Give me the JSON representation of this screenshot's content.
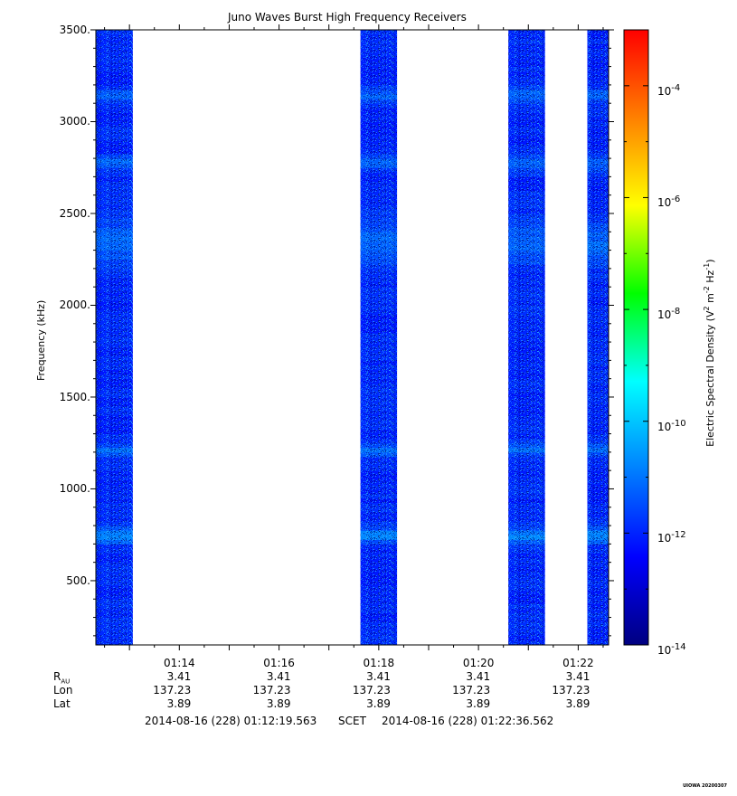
{
  "chart_data": {
    "type": "heatmap",
    "title": "Juno Waves Burst High Frequency Receivers",
    "ylabel": "Frequency (kHz)",
    "y_ticks": [
      "3500.",
      "3000.",
      "2500.",
      "2000.",
      "1500.",
      "1000.",
      "500."
    ],
    "y_tick_values": [
      3500,
      3000,
      2500,
      2000,
      1500,
      1000,
      500
    ],
    "ylim": [
      150,
      3500
    ],
    "xlim": [
      "01:12:19.563",
      "01:22:36.562"
    ],
    "x_ticks": [
      "01:14",
      "01:16",
      "01:18",
      "01:20",
      "01:22"
    ],
    "x_tick_values": [
      "01:14",
      "01:16",
      "01:18",
      "01:20",
      "01:22"
    ],
    "data_intervals": [
      [
        "01:12:19.563",
        "01:13:04"
      ],
      [
        "01:17:38",
        "01:18:22"
      ],
      [
        "01:20:36",
        "01:21:20"
      ],
      [
        "01:22:11",
        "01:22:36.562"
      ]
    ],
    "emission_bands_khz": [
      {
        "center": 3130,
        "strength": "moderate"
      },
      {
        "center": 2760,
        "strength": "moderate"
      },
      {
        "center": 2330,
        "strength": "broad"
      },
      {
        "center": 1200,
        "strength": "moderate"
      },
      {
        "center": 735,
        "strength": "strong"
      }
    ],
    "background_level_log10": -12,
    "colorbar": {
      "label": "Electric Spectral Density (V² m⁻² Hz⁻¹)",
      "label_parts": [
        "Electric Spectral Density (V",
        "2",
        " m",
        "-2",
        " Hz",
        "-1",
        ")"
      ],
      "scale": "log",
      "range_log10": [
        -14,
        -3
      ],
      "ticks": [
        {
          "base": "10",
          "exp": "-4",
          "value": -4
        },
        {
          "base": "10",
          "exp": "-6",
          "value": -6
        },
        {
          "base": "10",
          "exp": "-8",
          "value": -8
        },
        {
          "base": "10",
          "exp": "-10",
          "value": -10
        },
        {
          "base": "10",
          "exp": "-12",
          "value": -12
        },
        {
          "base": "10",
          "exp": "-14",
          "value": -14
        }
      ],
      "colors": [
        "#000080",
        "#0000ff",
        "#0080ff",
        "#00ffff",
        "#00ff00",
        "#ffff00",
        "#ff8000",
        "#ff0000"
      ]
    },
    "ephemeris": {
      "labels": [
        {
          "main": "R",
          "sub": "AU"
        },
        {
          "main": "Lon",
          "sub": ""
        },
        {
          "main": "Lat",
          "sub": ""
        }
      ],
      "rows": [
        [
          "3.41",
          "3.41",
          "3.41",
          "3.41",
          "3.41"
        ],
        [
          "137.23",
          "137.23",
          "137.23",
          "137.23",
          "137.23"
        ],
        [
          "3.89",
          "3.89",
          "3.89",
          "3.89",
          "3.89"
        ]
      ]
    },
    "time_range": {
      "start": "2014-08-16 (228) 01:12:19.563",
      "middle": "SCET",
      "end": "2014-08-16 (228) 01:22:36.562"
    }
  },
  "signature": "UIOWA 20200307"
}
